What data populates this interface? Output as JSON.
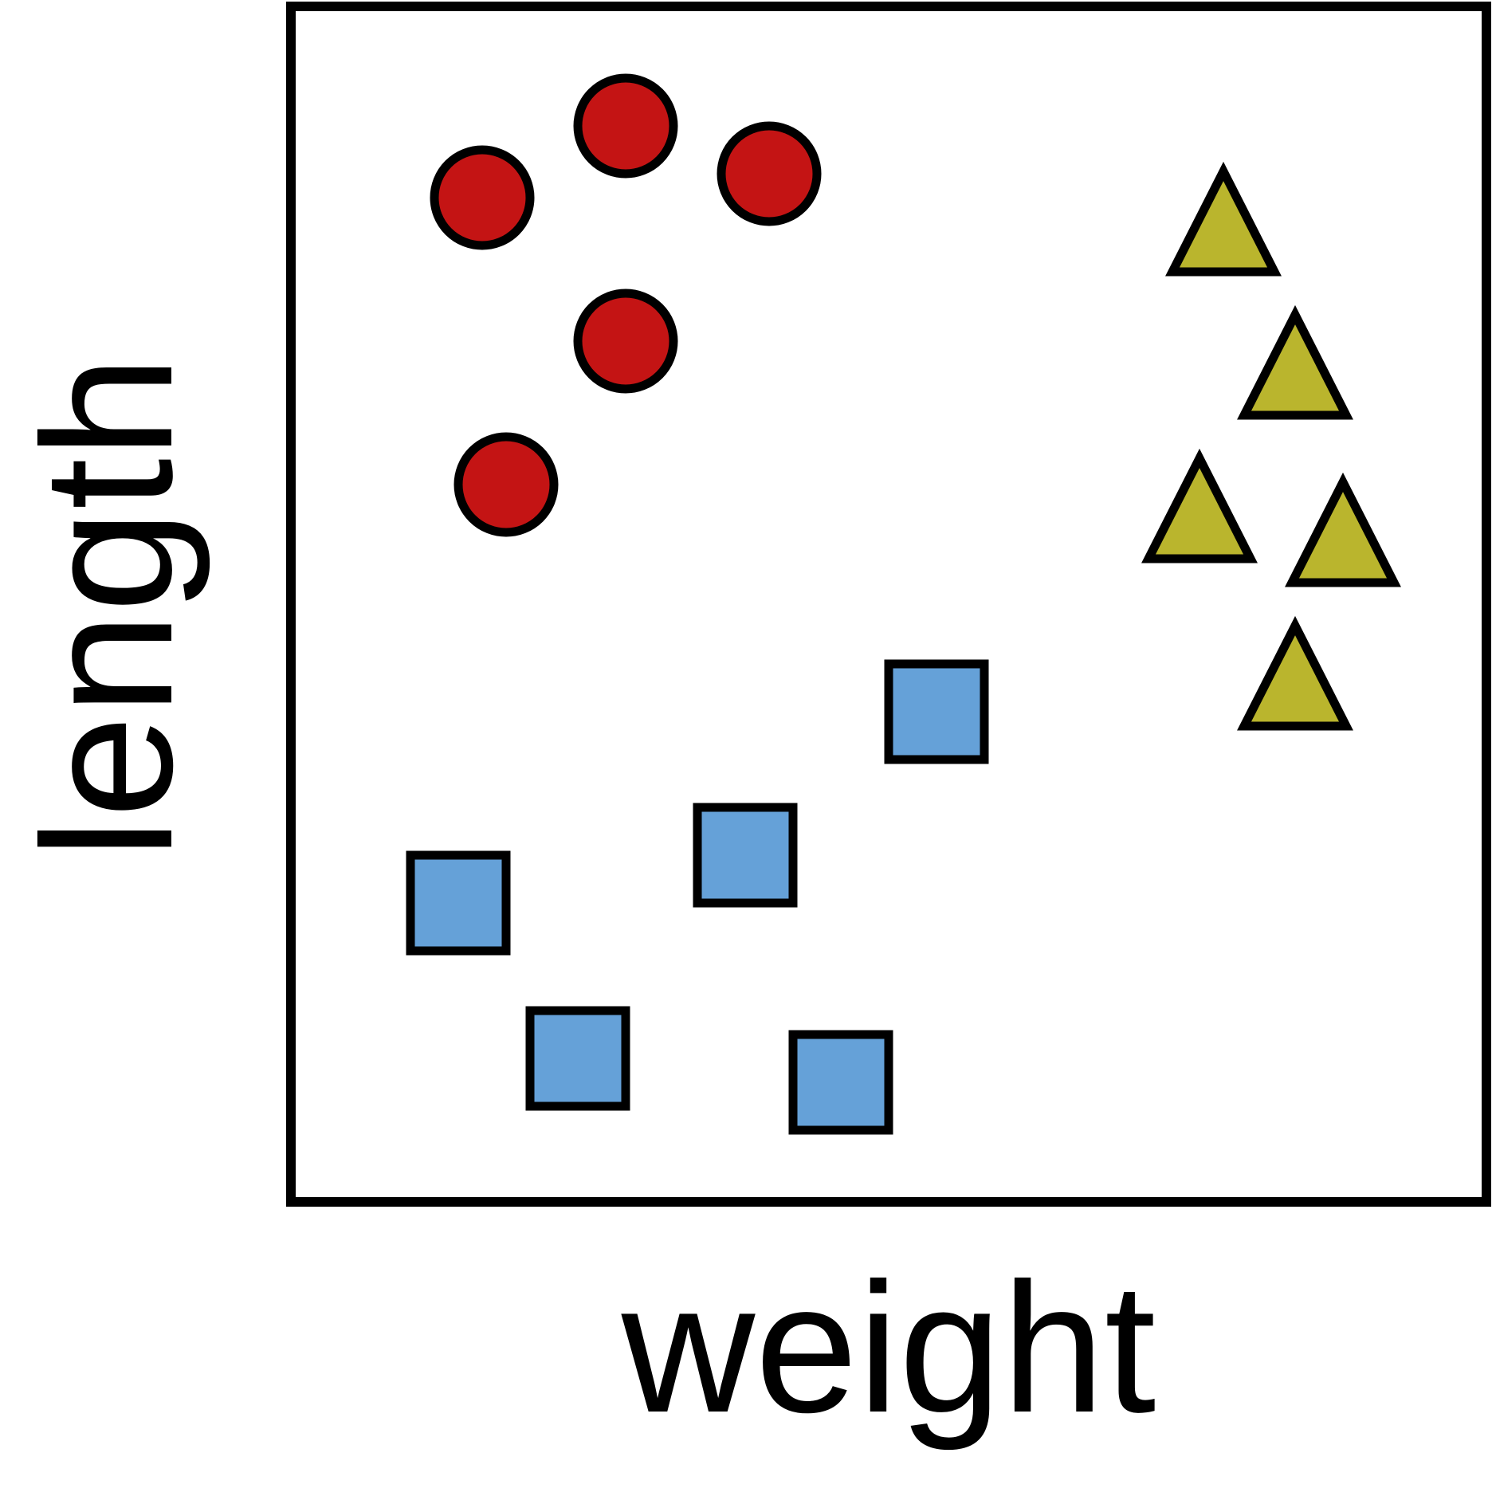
{
  "chart_data": {
    "type": "scatter",
    "title": "",
    "xlabel": "weight",
    "ylabel": "length",
    "xlim": [
      0,
      10
    ],
    "ylim": [
      0,
      10
    ],
    "grid": false,
    "legend": "none",
    "series": [
      {
        "marker": "circle",
        "color": "#C41414",
        "points": [
          {
            "x": 1.6,
            "y": 8.4
          },
          {
            "x": 2.8,
            "y": 9.0
          },
          {
            "x": 4.0,
            "y": 8.6
          },
          {
            "x": 2.8,
            "y": 7.2
          },
          {
            "x": 1.8,
            "y": 6.0
          }
        ]
      },
      {
        "marker": "triangle",
        "color": "#BAB52D",
        "points": [
          {
            "x": 7.8,
            "y": 8.2
          },
          {
            "x": 8.4,
            "y": 7.0
          },
          {
            "x": 7.6,
            "y": 5.8
          },
          {
            "x": 8.8,
            "y": 5.6
          },
          {
            "x": 8.4,
            "y": 4.4
          }
        ]
      },
      {
        "marker": "square",
        "color": "#65A1D8",
        "points": [
          {
            "x": 5.4,
            "y": 4.1
          },
          {
            "x": 3.8,
            "y": 2.9
          },
          {
            "x": 1.4,
            "y": 2.5
          },
          {
            "x": 2.4,
            "y": 1.2
          },
          {
            "x": 4.6,
            "y": 1.0
          }
        ]
      }
    ]
  }
}
